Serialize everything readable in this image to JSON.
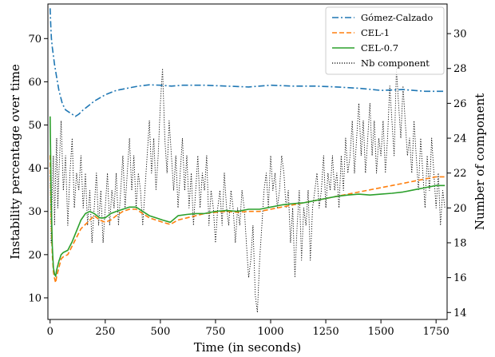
{
  "chart_data": {
    "type": "line",
    "xlabel": "Time (in seconds)",
    "ylabel": "Instability percentage over time",
    "y2label": "Number of component",
    "xlim": [
      -10,
      1800
    ],
    "ylim": [
      5,
      78
    ],
    "y2lim": [
      13.6,
      31.7
    ],
    "xticks": [
      0,
      250,
      500,
      750,
      1000,
      1250,
      1500,
      1750
    ],
    "yticks": [
      10,
      20,
      30,
      40,
      50,
      60,
      70
    ],
    "y2ticks": [
      14,
      16,
      18,
      20,
      22,
      24,
      26,
      28,
      30
    ],
    "grid": false,
    "legend_position": "top-right",
    "series": [
      {
        "name": "Gómez-Calzado",
        "axis": "left",
        "color": "#1f77b4",
        "style": "dashdot",
        "x": [
          0,
          3,
          6,
          10,
          15,
          20,
          30,
          40,
          55,
          70,
          85,
          100,
          115,
          130,
          150,
          175,
          200,
          250,
          300,
          350,
          400,
          450,
          500,
          550,
          600,
          700,
          800,
          900,
          1000,
          1100,
          1200,
          1300,
          1400,
          1500,
          1600,
          1700,
          1790
        ],
        "y": [
          77,
          73,
          70,
          68,
          66,
          64,
          61,
          58,
          55,
          53.5,
          53,
          52.5,
          52,
          52.5,
          53.5,
          54.5,
          55.5,
          57,
          58,
          58.5,
          59,
          59.3,
          59.2,
          59,
          59.2,
          59.2,
          59,
          58.8,
          59.2,
          59,
          59,
          58.8,
          58.5,
          58,
          58.2,
          57.8,
          57.8
        ]
      },
      {
        "name": "CEL-1",
        "axis": "left",
        "color": "#ff7f0e",
        "style": "dashed",
        "x": [
          0,
          5,
          10,
          15,
          20,
          25,
          30,
          40,
          50,
          60,
          80,
          100,
          120,
          140,
          160,
          180,
          200,
          225,
          250,
          275,
          300,
          330,
          360,
          390,
          420,
          450,
          480,
          510,
          545,
          580,
          620,
          660,
          700,
          750,
          800,
          850,
          900,
          950,
          1000,
          1050,
          1100,
          1150,
          1200,
          1250,
          1300,
          1350,
          1400,
          1450,
          1500,
          1550,
          1600,
          1650,
          1700,
          1750,
          1790
        ],
        "y": [
          43,
          28,
          20,
          16,
          14.5,
          13.5,
          15,
          17,
          19,
          19.5,
          20,
          22,
          24,
          26,
          27,
          28,
          29,
          28,
          27.5,
          28,
          29,
          30,
          30.5,
          30.5,
          29.5,
          28.5,
          28,
          27.5,
          27,
          28,
          28.5,
          29,
          29.5,
          29.8,
          30,
          29.8,
          30,
          30,
          30.5,
          31,
          31.5,
          32,
          32.5,
          33,
          33.5,
          34,
          34.5,
          35,
          35.5,
          36,
          36.5,
          37,
          37.5,
          38,
          38
        ]
      },
      {
        "name": "CEL-0.7",
        "axis": "left",
        "color": "#2ca02c",
        "style": "solid",
        "x": [
          0,
          5,
          10,
          15,
          20,
          25,
          30,
          40,
          50,
          60,
          80,
          100,
          120,
          140,
          160,
          180,
          200,
          225,
          250,
          275,
          300,
          330,
          360,
          390,
          420,
          450,
          480,
          510,
          545,
          580,
          620,
          660,
          700,
          750,
          800,
          850,
          900,
          950,
          1000,
          1050,
          1100,
          1150,
          1200,
          1250,
          1300,
          1350,
          1400,
          1450,
          1500,
          1550,
          1600,
          1650,
          1700,
          1750,
          1790
        ],
        "y": [
          52,
          33,
          22,
          17,
          15.5,
          15,
          16.5,
          18.5,
          20,
          20.5,
          21,
          23,
          25.5,
          28,
          29.5,
          30,
          29.5,
          28.5,
          28.5,
          29.5,
          30,
          30.5,
          31,
          31,
          30,
          29,
          28.5,
          28,
          27.5,
          29,
          29.3,
          29.5,
          29.5,
          30,
          30.2,
          30,
          30.5,
          30.5,
          31,
          31.5,
          31.8,
          32,
          32.5,
          33,
          33.5,
          33.8,
          34,
          33.8,
          34,
          34.2,
          34.5,
          35,
          35.5,
          36,
          36
        ]
      },
      {
        "name": "Nb component",
        "axis": "right",
        "color": "#000000",
        "style": "dotted",
        "x": [
          0,
          5,
          10,
          15,
          20,
          25,
          30,
          35,
          40,
          50,
          60,
          70,
          80,
          90,
          100,
          110,
          120,
          130,
          140,
          150,
          160,
          170,
          180,
          190,
          200,
          210,
          220,
          230,
          240,
          250,
          260,
          270,
          280,
          290,
          300,
          310,
          320,
          330,
          340,
          350,
          360,
          370,
          380,
          390,
          400,
          410,
          420,
          430,
          440,
          450,
          460,
          470,
          480,
          490,
          500,
          510,
          520,
          530,
          540,
          550,
          560,
          570,
          580,
          590,
          600,
          610,
          620,
          630,
          640,
          650,
          660,
          670,
          680,
          690,
          700,
          710,
          720,
          730,
          740,
          750,
          760,
          770,
          780,
          790,
          800,
          810,
          820,
          830,
          840,
          850,
          860,
          870,
          880,
          890,
          900,
          910,
          920,
          930,
          940,
          950,
          960,
          970,
          980,
          990,
          1000,
          1010,
          1020,
          1030,
          1040,
          1050,
          1060,
          1070,
          1080,
          1090,
          1100,
          1110,
          1120,
          1130,
          1140,
          1150,
          1160,
          1170,
          1180,
          1190,
          1200,
          1210,
          1220,
          1230,
          1240,
          1250,
          1260,
          1270,
          1280,
          1290,
          1300,
          1310,
          1320,
          1330,
          1340,
          1350,
          1360,
          1370,
          1380,
          1390,
          1400,
          1410,
          1420,
          1430,
          1440,
          1450,
          1460,
          1470,
          1480,
          1490,
          1500,
          1510,
          1520,
          1530,
          1540,
          1550,
          1560,
          1570,
          1580,
          1590,
          1600,
          1610,
          1620,
          1630,
          1640,
          1650,
          1660,
          1670,
          1680,
          1690,
          1700,
          1710,
          1720,
          1730,
          1740,
          1750,
          1760,
          1770,
          1780,
          1790
        ],
        "y": [
          22,
          18,
          21,
          23,
          19,
          22,
          24,
          20,
          22,
          25,
          21,
          23,
          19,
          22,
          24,
          20,
          22,
          21,
          23,
          20,
          22,
          19,
          21,
          18,
          20,
          22,
          19,
          21,
          18,
          20,
          22,
          19,
          21,
          20,
          22,
          19,
          21,
          23,
          20,
          22,
          24,
          21,
          23,
          20,
          22,
          21,
          19,
          21,
          23,
          25,
          22,
          24,
          21,
          23,
          26,
          28,
          24,
          22,
          25,
          23,
          21,
          23,
          20,
          22,
          24,
          21,
          23,
          20,
          22,
          19,
          21,
          23,
          20,
          22,
          21,
          23,
          19,
          21,
          20,
          18,
          20,
          21,
          19,
          22,
          20,
          19,
          21,
          20,
          18,
          20,
          19,
          21,
          20,
          18,
          16,
          17,
          19,
          15,
          14,
          17,
          19,
          21,
          22,
          20,
          23,
          21,
          22,
          20,
          21,
          23,
          22,
          20,
          21,
          18,
          20,
          16,
          19,
          21,
          17,
          20,
          19,
          21,
          17,
          20,
          21,
          22,
          20,
          21,
          23,
          20,
          22,
          21,
          23,
          21,
          22,
          20,
          23,
          21,
          24,
          22,
          23,
          25,
          22,
          24,
          26,
          23,
          25,
          22,
          24,
          26,
          23,
          25,
          22,
          24,
          23,
          25,
          22,
          24,
          27,
          25,
          23,
          28,
          26,
          24,
          27,
          25,
          23,
          24,
          22,
          25,
          23,
          21,
          24,
          22,
          20,
          23,
          21,
          24,
          22,
          20,
          22,
          19,
          21,
          20
        ]
      }
    ]
  }
}
